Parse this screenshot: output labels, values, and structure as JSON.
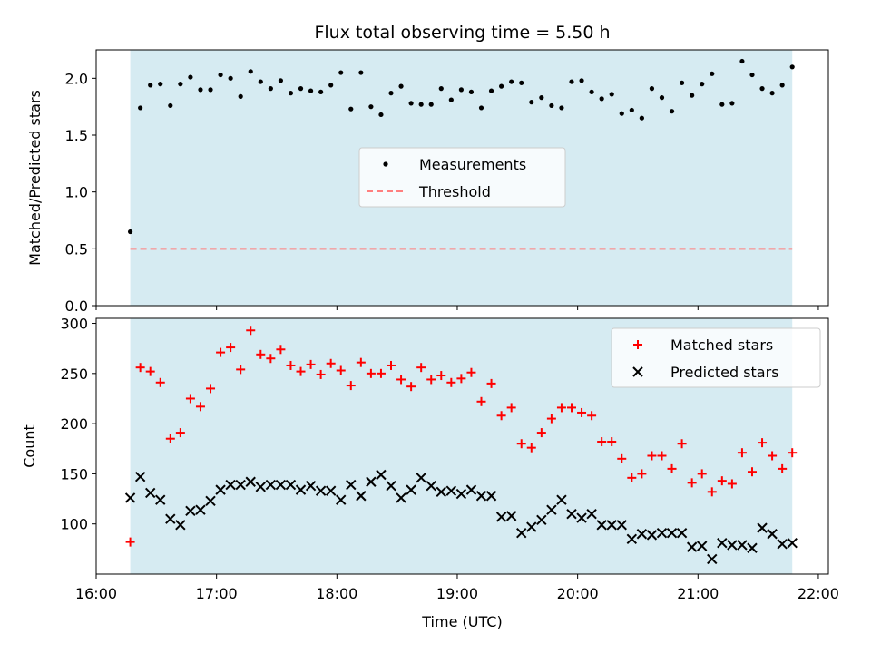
{
  "colors": {
    "observing_window": "#add8e6",
    "measurements": "#000000",
    "threshold": "#ff7f7f",
    "matched": "#ff0000",
    "predicted": "#000000"
  },
  "chart_data": [
    {
      "type": "scatter",
      "title": "Flux total observing time = 5.50 h",
      "xlabel": "",
      "ylabel": "Matched/Predicted stars",
      "xlim": [
        "16:00",
        "22:05"
      ],
      "ylim": [
        0,
        2.25
      ],
      "yticks": [
        "0.0",
        "0.5",
        "1.0",
        "1.5",
        "2.0"
      ],
      "shaded_span": [
        "16:17",
        "21:47"
      ],
      "threshold": 0.5,
      "legend_position": "center",
      "series": [
        {
          "name": "Measurements",
          "marker": "dot",
          "x": [
            "16:17",
            "16:22",
            "16:27",
            "16:32",
            "16:37",
            "16:42",
            "16:47",
            "16:52",
            "16:57",
            "17:02",
            "17:07",
            "17:12",
            "17:17",
            "17:22",
            "17:27",
            "17:32",
            "17:37",
            "17:42",
            "17:47",
            "17:52",
            "17:57",
            "18:02",
            "18:07",
            "18:12",
            "18:17",
            "18:22",
            "18:27",
            "18:32",
            "18:37",
            "18:42",
            "18:47",
            "18:52",
            "18:57",
            "19:02",
            "19:07",
            "19:12",
            "19:17",
            "19:22",
            "19:27",
            "19:32",
            "19:37",
            "19:42",
            "19:47",
            "19:52",
            "19:57",
            "20:02",
            "20:07",
            "20:12",
            "20:17",
            "20:22",
            "20:27",
            "20:32",
            "20:37",
            "20:42",
            "20:47",
            "20:52",
            "20:57",
            "21:02",
            "21:07",
            "21:12",
            "21:17",
            "21:22",
            "21:27",
            "21:32",
            "21:37",
            "21:42",
            "21:47"
          ],
          "y": [
            0.65,
            1.74,
            1.94,
            1.95,
            1.76,
            1.95,
            2.01,
            1.9,
            1.9,
            2.03,
            2.0,
            1.84,
            2.06,
            1.97,
            1.91,
            1.98,
            1.87,
            1.91,
            1.89,
            1.88,
            1.94,
            2.05,
            1.73,
            2.05,
            1.75,
            1.68,
            1.87,
            1.93,
            1.78,
            1.77,
            1.77,
            1.91,
            1.81,
            1.9,
            1.88,
            1.74,
            1.89,
            1.93,
            1.97,
            1.96,
            1.79,
            1.83,
            1.76,
            1.74,
            1.97,
            1.98,
            1.88,
            1.82,
            1.86,
            1.69,
            1.72,
            1.65,
            1.91,
            1.83,
            1.71,
            1.96,
            1.85,
            1.95,
            2.04,
            1.77,
            1.78,
            2.15,
            2.03,
            1.91,
            1.87,
            1.94,
            2.1
          ]
        },
        {
          "name": "Threshold",
          "style": "dashed",
          "x": [
            "16:17",
            "21:47"
          ],
          "y": [
            0.5,
            0.5
          ]
        }
      ]
    },
    {
      "type": "scatter",
      "title": "",
      "xlabel": "Time (UTC)",
      "ylabel": "Count",
      "xlim": [
        "16:00",
        "22:05"
      ],
      "ylim": [
        50,
        305
      ],
      "xticks": [
        "16:00",
        "17:00",
        "18:00",
        "19:00",
        "20:00",
        "21:00",
        "22:00"
      ],
      "yticks": [
        "100",
        "150",
        "200",
        "250",
        "300"
      ],
      "shaded_span": [
        "16:17",
        "21:47"
      ],
      "legend_position": "upper right",
      "series": [
        {
          "name": "Matched stars",
          "marker": "plus",
          "x": [
            "16:17",
            "16:22",
            "16:27",
            "16:32",
            "16:37",
            "16:42",
            "16:47",
            "16:52",
            "16:57",
            "17:02",
            "17:07",
            "17:12",
            "17:17",
            "17:22",
            "17:27",
            "17:32",
            "17:37",
            "17:42",
            "17:47",
            "17:52",
            "17:57",
            "18:02",
            "18:07",
            "18:12",
            "18:17",
            "18:22",
            "18:27",
            "18:32",
            "18:37",
            "18:42",
            "18:47",
            "18:52",
            "18:57",
            "19:02",
            "19:07",
            "19:12",
            "19:17",
            "19:22",
            "19:27",
            "19:32",
            "19:37",
            "19:42",
            "19:47",
            "19:52",
            "19:57",
            "20:02",
            "20:07",
            "20:12",
            "20:17",
            "20:22",
            "20:27",
            "20:32",
            "20:37",
            "20:42",
            "20:47",
            "20:52",
            "20:57",
            "21:02",
            "21:07",
            "21:12",
            "21:17",
            "21:22",
            "21:27",
            "21:32",
            "21:37",
            "21:42",
            "21:47"
          ],
          "y": [
            82,
            256,
            252,
            241,
            185,
            191,
            225,
            217,
            235,
            271,
            276,
            254,
            293,
            269,
            265,
            274,
            258,
            252,
            259,
            249,
            260,
            253,
            238,
            261,
            250,
            250,
            258,
            244,
            237,
            256,
            244,
            248,
            241,
            245,
            251,
            222,
            240,
            208,
            216,
            180,
            176,
            191,
            205,
            216,
            216,
            211,
            208,
            182,
            182,
            165,
            146,
            150,
            168,
            168,
            155,
            180,
            141,
            150,
            132,
            143,
            140,
            171,
            152,
            181,
            168,
            155,
            171
          ]
        },
        {
          "name": "Predicted stars",
          "marker": "x",
          "x": [
            "16:17",
            "16:22",
            "16:27",
            "16:32",
            "16:37",
            "16:42",
            "16:47",
            "16:52",
            "16:57",
            "17:02",
            "17:07",
            "17:12",
            "17:17",
            "17:22",
            "17:27",
            "17:32",
            "17:37",
            "17:42",
            "17:47",
            "17:52",
            "17:57",
            "18:02",
            "18:07",
            "18:12",
            "18:17",
            "18:22",
            "18:27",
            "18:32",
            "18:37",
            "18:42",
            "18:47",
            "18:52",
            "18:57",
            "19:02",
            "19:07",
            "19:12",
            "19:17",
            "19:22",
            "19:27",
            "19:32",
            "19:37",
            "19:42",
            "19:47",
            "19:52",
            "19:57",
            "20:02",
            "20:07",
            "20:12",
            "20:17",
            "20:22",
            "20:27",
            "20:32",
            "20:37",
            "20:42",
            "20:47",
            "20:52",
            "20:57",
            "21:02",
            "21:07",
            "21:12",
            "21:17",
            "21:22",
            "21:27",
            "21:32",
            "21:37",
            "21:42",
            "21:47"
          ],
          "y": [
            126,
            147,
            131,
            124,
            105,
            99,
            113,
            114,
            123,
            134,
            139,
            139,
            142,
            137,
            139,
            139,
            139,
            134,
            138,
            133,
            133,
            124,
            139,
            128,
            142,
            149,
            138,
            126,
            134,
            146,
            138,
            132,
            133,
            130,
            134,
            128,
            128,
            107,
            108,
            91,
            97,
            104,
            114,
            124,
            110,
            106,
            110,
            99,
            99,
            99,
            85,
            90,
            89,
            91,
            91,
            91,
            77,
            78,
            65,
            81,
            79,
            79,
            76,
            96,
            90,
            80,
            81
          ]
        }
      ]
    }
  ]
}
